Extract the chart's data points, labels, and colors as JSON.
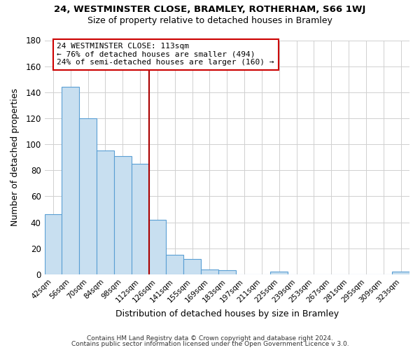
{
  "title1": "24, WESTMINSTER CLOSE, BRAMLEY, ROTHERHAM, S66 1WJ",
  "title2": "Size of property relative to detached houses in Bramley",
  "xlabel": "Distribution of detached houses by size in Bramley",
  "ylabel": "Number of detached properties",
  "footer1": "Contains HM Land Registry data © Crown copyright and database right 2024.",
  "footer2": "Contains public sector information licensed under the Open Government Licence v 3.0.",
  "bar_labels": [
    "42sqm",
    "56sqm",
    "70sqm",
    "84sqm",
    "98sqm",
    "112sqm",
    "126sqm",
    "141sqm",
    "155sqm",
    "169sqm",
    "183sqm",
    "197sqm",
    "211sqm",
    "225sqm",
    "239sqm",
    "253sqm",
    "267sqm",
    "281sqm",
    "295sqm",
    "309sqm",
    "323sqm"
  ],
  "bar_values": [
    46,
    144,
    120,
    95,
    91,
    85,
    42,
    15,
    12,
    4,
    3,
    0,
    0,
    2,
    0,
    0,
    0,
    0,
    0,
    0,
    2
  ],
  "bar_color": "#c8dff0",
  "bar_edge_color": "#5a9fd4",
  "highlight_line_color": "#aa0000",
  "annotation_line1": "24 WESTMINSTER CLOSE: 113sqm",
  "annotation_line2": "← 76% of detached houses are smaller (494)",
  "annotation_line3": "24% of semi-detached houses are larger (160) →",
  "annotation_box_color": "white",
  "annotation_box_edge": "#cc0000",
  "ylim": [
    0,
    180
  ],
  "yticks": [
    0,
    20,
    40,
    60,
    80,
    100,
    120,
    140,
    160,
    180
  ],
  "grid_color": "#d0d0d0"
}
